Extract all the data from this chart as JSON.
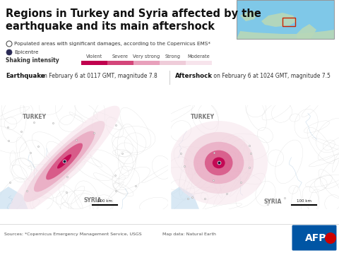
{
  "title_line1": "Regions in Turkey and Syria affected by the",
  "title_line2": "earthquake and its main aftershock",
  "legend_populated": "Populated areas with significant damages, according to the Copernicus EMS*",
  "legend_epicentre": "Epicentre",
  "shaking_label": "Shaking intensity",
  "shaking_categories": [
    "Violent",
    "Severe",
    "Very strong",
    "Strong",
    "Moderate"
  ],
  "shaking_colors": [
    "#c0004e",
    "#d4467a",
    "#e8a0bb",
    "#efccd9",
    "#f7e4ec"
  ],
  "eq_label": "Earthquake",
  "eq_date": " on February 6 at 0117 GMT, magnitude 7.8",
  "as_label": "Aftershock",
  "as_date": " on February 6 at 1024 GMT, magnitude 7.5",
  "sources": "Sources: *Copernicus Emergency Management Service, USGS",
  "map_data": "Map data: Natural Earth",
  "bg_color": "#ffffff",
  "map_land_color": "#e8e4dc",
  "map_water_color": "#c8dff0",
  "title_color": "#1a1a1a",
  "scale_bar_km": "100 km"
}
